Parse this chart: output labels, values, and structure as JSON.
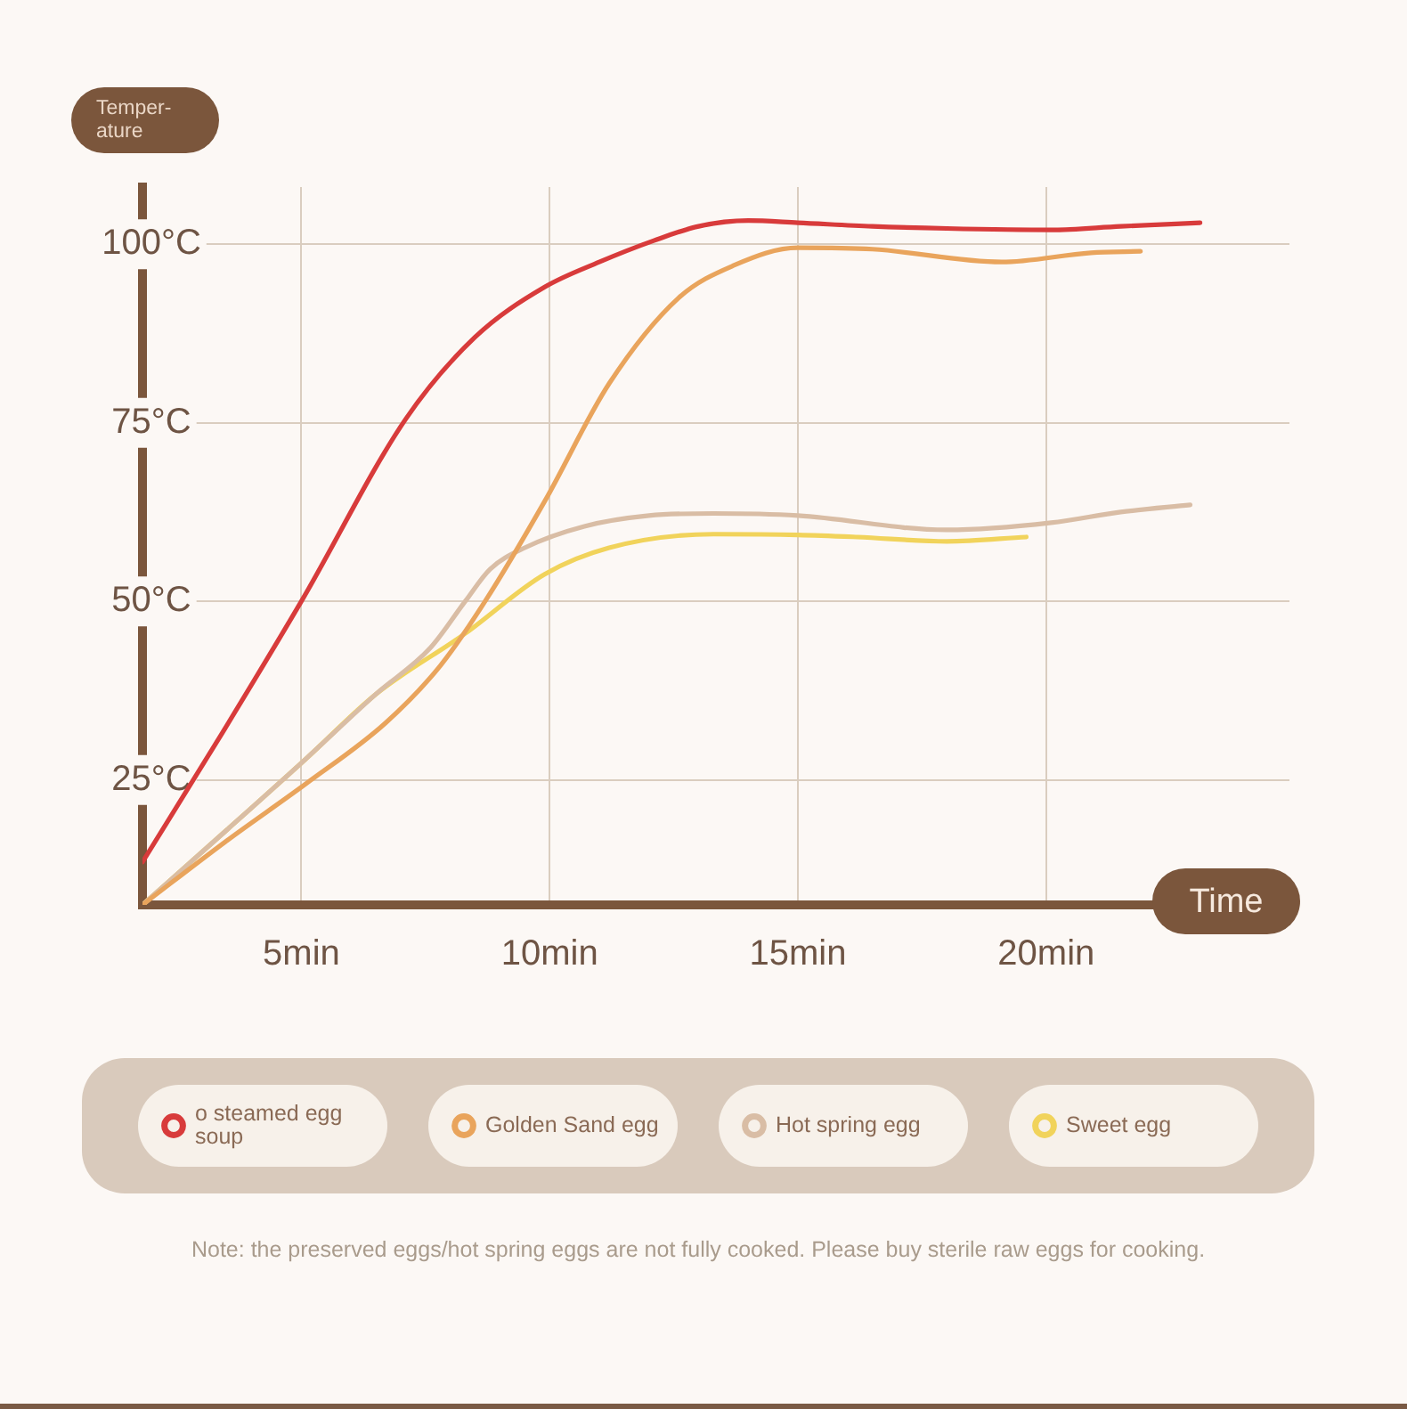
{
  "chart_data": {
    "type": "line",
    "ylabel": "Temper-ature",
    "xlabel": "Time",
    "xlim": [
      1.8,
      24.9
    ],
    "xticks": [
      {
        "value": 5,
        "label": "5min"
      },
      {
        "value": 10,
        "label": "10min"
      },
      {
        "value": 15,
        "label": "15min"
      },
      {
        "value": 20,
        "label": "20min"
      }
    ],
    "ylim": [
      7.5,
      108
    ],
    "yticks": [
      {
        "value": 25,
        "label": "25°C"
      },
      {
        "value": 50,
        "label": "50°C"
      },
      {
        "value": 75,
        "label": "75°C"
      },
      {
        "value": 100,
        "label": "100°C"
      }
    ],
    "grid": true,
    "legend": "bottom",
    "marker": "none",
    "series": [
      {
        "name": "o steamed egg soup",
        "color": "#d83b3b",
        "x": [
          1.8,
          3.4,
          5.0,
          7.1,
          8.5,
          9.9,
          11.0,
          12.1,
          13.0,
          14.0,
          15.0,
          16.5,
          18.0,
          20.1,
          21.5,
          23.1
        ],
        "values": [
          13.5,
          31.5,
          50,
          75.5,
          87,
          94,
          97.5,
          100.5,
          102.5,
          103.3,
          103,
          102.5,
          102.2,
          102,
          102.5,
          103
        ]
      },
      {
        "name": "Golden Sand egg",
        "color": "#e9a45c",
        "x": [
          1.8,
          3.5,
          5.1,
          6.7,
          7.8,
          8.7,
          9.9,
          11.2,
          12.6,
          13.7,
          15.0,
          16.5,
          19.1,
          20.9,
          21.9
        ],
        "values": [
          7.5,
          16.5,
          24.5,
          33,
          41,
          50,
          64,
          80.5,
          92.5,
          97,
          99.5,
          99.3,
          97.5,
          98.8,
          99
        ]
      },
      {
        "name": "Hot spring egg",
        "color": "#d9bda5",
        "x": [
          1.8,
          3.5,
          5.1,
          6.5,
          7.6,
          8.3,
          8.8,
          9.5,
          10.7,
          12.0,
          13.3,
          15.0,
          18.0,
          20.1,
          21.5,
          22.9
        ],
        "values": [
          7.5,
          18,
          28,
          37,
          43.5,
          50,
          54.5,
          57.5,
          60.5,
          62,
          62.3,
          62,
          60,
          61,
          62.5,
          63.5
        ]
      },
      {
        "name": "Sweet egg",
        "color": "#f1d35b",
        "x": [
          1.8,
          3.5,
          5.1,
          6.5,
          8.3,
          9.9,
          11.2,
          13.3,
          15.0,
          16.2,
          18.0,
          19.6
        ],
        "values": [
          7.5,
          18,
          28,
          37,
          45.5,
          53.8,
          57.5,
          59.4,
          59.3,
          59,
          58.4,
          59
        ]
      }
    ],
    "annotations": [
      "Note: the preserved eggs/hot spring eggs are not fully cooked. Please buy sterile raw eggs for cooking."
    ]
  }
}
